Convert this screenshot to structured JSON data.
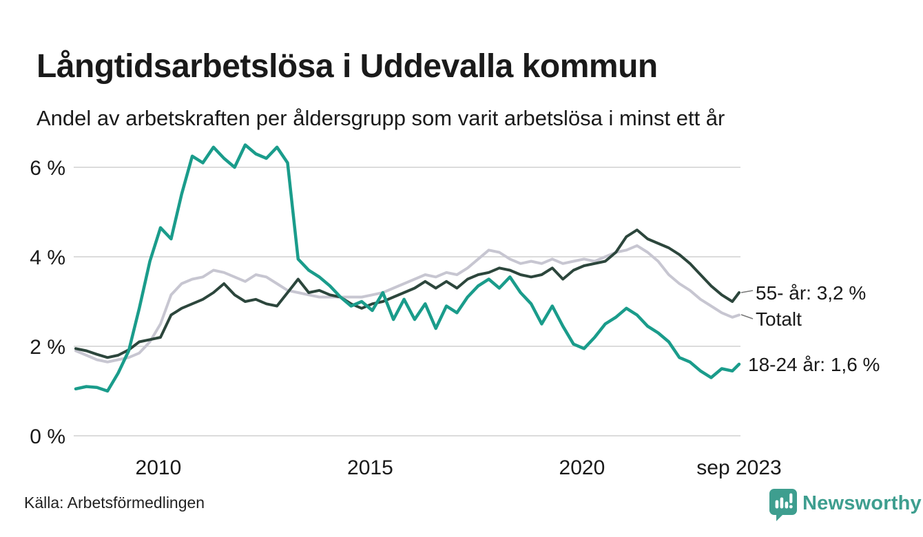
{
  "header": {
    "title": "Långtidsarbetslösa i Uddevalla kommun",
    "subtitle": "Andel av arbetskraften per åldersgrupp som varit arbetslösa i minst ett år"
  },
  "footer": {
    "source": "Källa: Arbetsförmedlingen",
    "brand": "Newsworthy",
    "brand_color": "#3E9E8F",
    "brand_icon": "speech-bubble-bar-chart-icon"
  },
  "chart_data": {
    "type": "line",
    "title": "Långtidsarbetslösa i Uddevalla kommun",
    "subtitle": "Andel av arbetskraften per åldersgrupp som varit arbetslösa i minst ett år",
    "xlabel": "",
    "ylabel": "",
    "unit": "% av arbetskraften",
    "x_range": [
      2008.05,
      2023.71
    ],
    "ylim": [
      0,
      6.8
    ],
    "grid": true,
    "grid_color": "#DBDBDB",
    "text_color": "#1A1A1A",
    "legend_position": "right-end-labels",
    "yticks": [
      {
        "value": 0,
        "label": "0 %"
      },
      {
        "value": 2,
        "label": "2 %"
      },
      {
        "value": 4,
        "label": "4 %"
      },
      {
        "value": 6,
        "label": "6 %"
      }
    ],
    "xticks": [
      {
        "value": 2010,
        "label": "2010"
      },
      {
        "value": 2015,
        "label": "2015"
      },
      {
        "value": 2020,
        "label": "2020"
      },
      {
        "value": 2023.71,
        "label": "sep 2023"
      }
    ],
    "x": [
      2008.05,
      2008.3,
      2008.55,
      2008.8,
      2009.05,
      2009.3,
      2009.55,
      2009.8,
      2010.05,
      2010.3,
      2010.55,
      2010.8,
      2011.05,
      2011.3,
      2011.55,
      2011.8,
      2012.05,
      2012.3,
      2012.55,
      2012.8,
      2013.05,
      2013.3,
      2013.55,
      2013.8,
      2014.05,
      2014.3,
      2014.55,
      2014.8,
      2015.05,
      2015.3,
      2015.55,
      2015.8,
      2016.05,
      2016.3,
      2016.55,
      2016.8,
      2017.05,
      2017.3,
      2017.55,
      2017.8,
      2018.05,
      2018.3,
      2018.55,
      2018.8,
      2019.05,
      2019.3,
      2019.55,
      2019.8,
      2020.05,
      2020.3,
      2020.55,
      2020.8,
      2021.05,
      2021.3,
      2021.55,
      2021.8,
      2022.05,
      2022.3,
      2022.55,
      2022.8,
      2023.05,
      2023.3,
      2023.55,
      2023.71
    ],
    "series": [
      {
        "id": "totalt",
        "name": "Totalt",
        "end_label": "Totalt",
        "last_value": 2.7,
        "color": "#C7C6D1",
        "stroke_width": 4,
        "values": [
          1.9,
          1.8,
          1.7,
          1.65,
          1.7,
          1.75,
          1.85,
          2.1,
          2.5,
          3.15,
          3.4,
          3.5,
          3.55,
          3.7,
          3.65,
          3.55,
          3.45,
          3.6,
          3.55,
          3.4,
          3.25,
          3.2,
          3.15,
          3.1,
          3.1,
          3.1,
          3.1,
          3.1,
          3.15,
          3.2,
          3.3,
          3.4,
          3.5,
          3.6,
          3.55,
          3.65,
          3.6,
          3.75,
          3.95,
          4.15,
          4.1,
          3.95,
          3.85,
          3.9,
          3.85,
          3.95,
          3.85,
          3.9,
          3.95,
          3.9,
          4.0,
          4.1,
          4.15,
          4.25,
          4.1,
          3.9,
          3.6,
          3.4,
          3.25,
          3.05,
          2.9,
          2.75,
          2.65,
          2.7
        ]
      },
      {
        "id": "55-ar",
        "name": "55- år",
        "end_label": "55- år: 3,2 %",
        "last_value": 3.2,
        "color": "#2C463C",
        "stroke_width": 4,
        "values": [
          1.95,
          1.9,
          1.82,
          1.75,
          1.8,
          1.92,
          2.1,
          2.15,
          2.2,
          2.7,
          2.85,
          2.95,
          3.05,
          3.2,
          3.4,
          3.15,
          3.0,
          3.05,
          2.95,
          2.9,
          3.2,
          3.5,
          3.2,
          3.25,
          3.15,
          3.1,
          2.95,
          2.85,
          2.95,
          3.0,
          3.1,
          3.2,
          3.3,
          3.45,
          3.3,
          3.45,
          3.3,
          3.5,
          3.6,
          3.65,
          3.75,
          3.7,
          3.6,
          3.55,
          3.6,
          3.75,
          3.5,
          3.7,
          3.8,
          3.85,
          3.9,
          4.1,
          4.45,
          4.6,
          4.4,
          4.3,
          4.2,
          4.05,
          3.85,
          3.6,
          3.35,
          3.15,
          3.0,
          3.2
        ]
      },
      {
        "id": "18-24-ar",
        "name": "18-24 år",
        "end_label": "18-24 år: 1,6 %",
        "last_value": 1.6,
        "color": "#1A9C8B",
        "stroke_width": 4.5,
        "values": [
          1.05,
          1.1,
          1.08,
          1.0,
          1.4,
          1.9,
          2.85,
          3.9,
          4.65,
          4.4,
          5.4,
          6.25,
          6.1,
          6.45,
          6.2,
          6.0,
          6.5,
          6.3,
          6.2,
          6.45,
          6.1,
          3.95,
          3.7,
          3.55,
          3.35,
          3.1,
          2.9,
          3.0,
          2.8,
          3.2,
          2.6,
          3.05,
          2.6,
          2.95,
          2.4,
          2.9,
          2.75,
          3.1,
          3.35,
          3.5,
          3.3,
          3.55,
          3.2,
          2.95,
          2.5,
          2.9,
          2.45,
          2.05,
          1.95,
          2.2,
          2.5,
          2.65,
          2.85,
          2.7,
          2.45,
          2.3,
          2.1,
          1.75,
          1.65,
          1.45,
          1.3,
          1.5,
          1.45,
          1.6
        ]
      }
    ]
  }
}
